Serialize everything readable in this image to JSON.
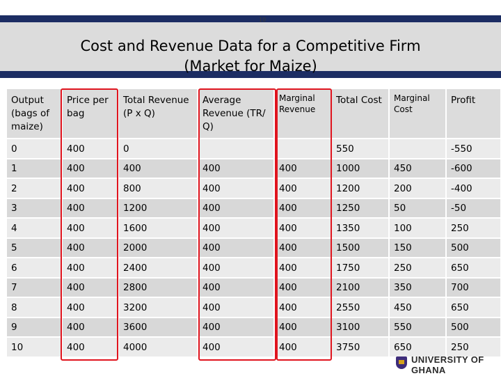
{
  "page_number": "10",
  "title_line1": "Cost and Revenue Data for a Competitive Firm",
  "title_line2": "(Market for Maize)",
  "headers": [
    {
      "text": "Output (bags of maize)",
      "small": false
    },
    {
      "text": "Price per bag",
      "small": false
    },
    {
      "text": "Total Revenue (P x Q)",
      "small": false
    },
    {
      "text": "Average Revenue (TR/ Q)",
      "small": false
    },
    {
      "text": "Marginal Revenue",
      "small": true
    },
    {
      "text": "Total Cost",
      "small": false
    },
    {
      "text": "Marginal Cost",
      "small": true
    },
    {
      "text": "Profit",
      "small": false
    }
  ],
  "rows": [
    [
      "0",
      "400",
      "0",
      "",
      "",
      "550",
      "",
      "-550"
    ],
    [
      "1",
      "400",
      "400",
      "400",
      "400",
      "1000",
      "450",
      "-600"
    ],
    [
      "2",
      "400",
      "800",
      "400",
      "400",
      "1200",
      "200",
      "-400"
    ],
    [
      "3",
      "400",
      "1200",
      "400",
      "400",
      "1250",
      "50",
      "-50"
    ],
    [
      "4",
      "400",
      "1600",
      "400",
      "400",
      "1350",
      "100",
      "250"
    ],
    [
      "5",
      "400",
      "2000",
      "400",
      "400",
      "1500",
      "150",
      "500"
    ],
    [
      "6",
      "400",
      "2400",
      "400",
      "400",
      "1750",
      "250",
      "650"
    ],
    [
      "7",
      "400",
      "2800",
      "400",
      "400",
      "2100",
      "350",
      "700"
    ],
    [
      "8",
      "400",
      "3200",
      "400",
      "400",
      "2550",
      "450",
      "650"
    ],
    [
      "9",
      "400",
      "3600",
      "400",
      "400",
      "3100",
      "550",
      "500"
    ],
    [
      "10",
      "400",
      "4000",
      "400",
      "400",
      "3750",
      "650",
      "250"
    ]
  ],
  "logo_text": "UNIVERSITY OF GHANA",
  "colors": {
    "banner": "#1c2d63",
    "highlight": "#e0141e"
  }
}
